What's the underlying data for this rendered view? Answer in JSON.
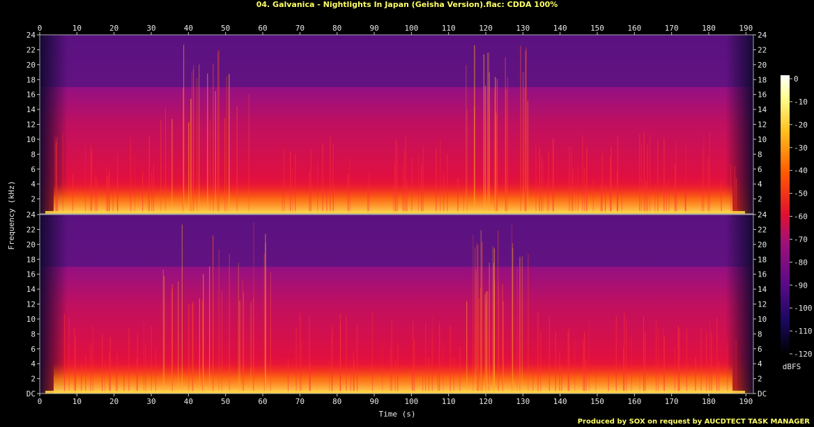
{
  "header": {
    "title": "04. Galvanica - Nightlights In Japan (Geisha Version).flac: CDDA 100%",
    "credit": "Produced by SOX on request by AUCDTECT TASK MANAGER"
  },
  "chart_data": {
    "type": "heatmap",
    "title": "04. Galvanica - Nightlights In Japan (Geisha Version).flac: CDDA 100%",
    "xlabel": "Time (s)",
    "ylabel": "Frequency (kHz)",
    "xlim": [
      0,
      192
    ],
    "ylim": [
      0,
      24
    ],
    "x_ticks": [
      "0",
      "10",
      "20",
      "30",
      "40",
      "50",
      "60",
      "70",
      "80",
      "90",
      "100",
      "110",
      "120",
      "130",
      "140",
      "150",
      "160",
      "170",
      "180",
      "190"
    ],
    "y_ticks_top": [
      "24",
      "22",
      "20",
      "18",
      "16",
      "14",
      "12",
      "10",
      "8",
      "6",
      "4",
      "2"
    ],
    "y_ticks_bottom": [
      "24",
      "22",
      "20",
      "18",
      "16",
      "14",
      "12",
      "10",
      "8",
      "6",
      "4",
      "2",
      "DC"
    ],
    "channels": 2,
    "colorbar": {
      "label": "dBFS",
      "ticks": [
        "0",
        "-10",
        "-20",
        "-30",
        "-40",
        "-50",
        "-60",
        "-70",
        "-80",
        "-90",
        "-100",
        "-110",
        "-120"
      ],
      "range": [
        -120,
        0
      ],
      "colors": [
        "#000000",
        "#1a0860",
        "#5a0a8a",
        "#a0107a",
        "#e01030",
        "#ff5a00",
        "#ffc020",
        "#ffff90",
        "#ffffff"
      ]
    }
  }
}
